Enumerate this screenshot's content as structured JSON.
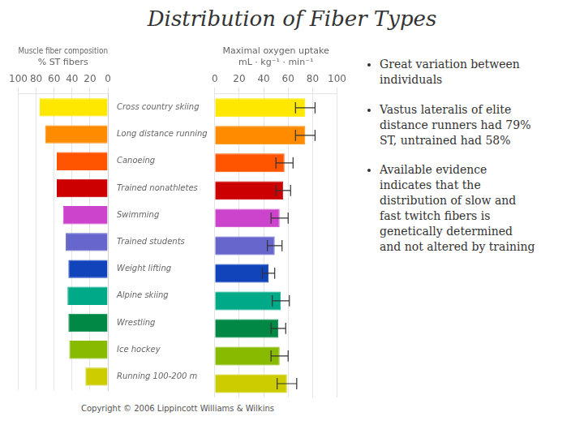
{
  "chart_data": [
    {
      "type": "bar",
      "orientation": "horizontal",
      "title": "Distribution of Fiber Types",
      "xlabel": "Muscle fiber composition\n% ST fibers",
      "categories": [
        "Cross country skiing",
        "Long distance running",
        "Canoeing",
        "Trained nonathletes",
        "Swimming",
        "Trained students",
        "Weight lifting",
        "Alpine skiing",
        "Wrestling",
        "Ice hockey",
        "Running 100-200 m"
      ],
      "values": [
        76,
        70,
        57,
        57,
        50,
        47,
        44,
        45,
        44,
        43,
        25
      ],
      "colors": [
        "#FFE800",
        "#FF8C00",
        "#FF5500",
        "#CC0000",
        "#CC44CC",
        "#6666CC",
        "#1144BB",
        "#00AA88",
        "#008844",
        "#88BB00",
        "#CCCC00"
      ],
      "xlim": [
        100,
        0
      ],
      "xticks": [
        100,
        80,
        60,
        40,
        20,
        0
      ],
      "grid": true,
      "annotations": [
        "Copyright © 2006 Lippincott Williams & Wilkins"
      ]
    },
    {
      "type": "bar",
      "orientation": "horizontal",
      "xlabel": "Maximal oxygen uptake\nmL · kg⁻¹ · min⁻¹",
      "categories": [
        "Cross country skiing",
        "Long distance running",
        "Canoeing",
        "Trained nonathletes",
        "Swimming",
        "Trained students",
        "Weight lifting",
        "Alpine skiing",
        "Wrestling",
        "Ice hockey",
        "Running 100-200 m"
      ],
      "values": [
        74,
        74,
        57,
        56,
        53,
        49,
        44,
        54,
        52,
        53,
        59
      ],
      "errors": [
        8,
        8,
        7,
        6,
        7,
        6,
        5,
        7,
        6,
        7,
        8
      ],
      "colors": [
        "#FFE800",
        "#FF8C00",
        "#FF5500",
        "#CC0000",
        "#CC44CC",
        "#6666CC",
        "#1144BB",
        "#00AA88",
        "#008844",
        "#88BB00",
        "#CCCC00"
      ],
      "xlim": [
        0,
        100
      ],
      "xticks": [
        0,
        20,
        40,
        60,
        80,
        100
      ],
      "grid": true,
      "annotations": [
        "Great variation between\nindividuals",
        "Vastus lateralis of elite\ndistance runners had 79%\nST, untrained had 58%",
        "Available evidence\nindicates that the\ndistribution of slow and\nfast twitch fibers is\ngenetically determined\nand not altered by training"
      ]
    }
  ]
}
